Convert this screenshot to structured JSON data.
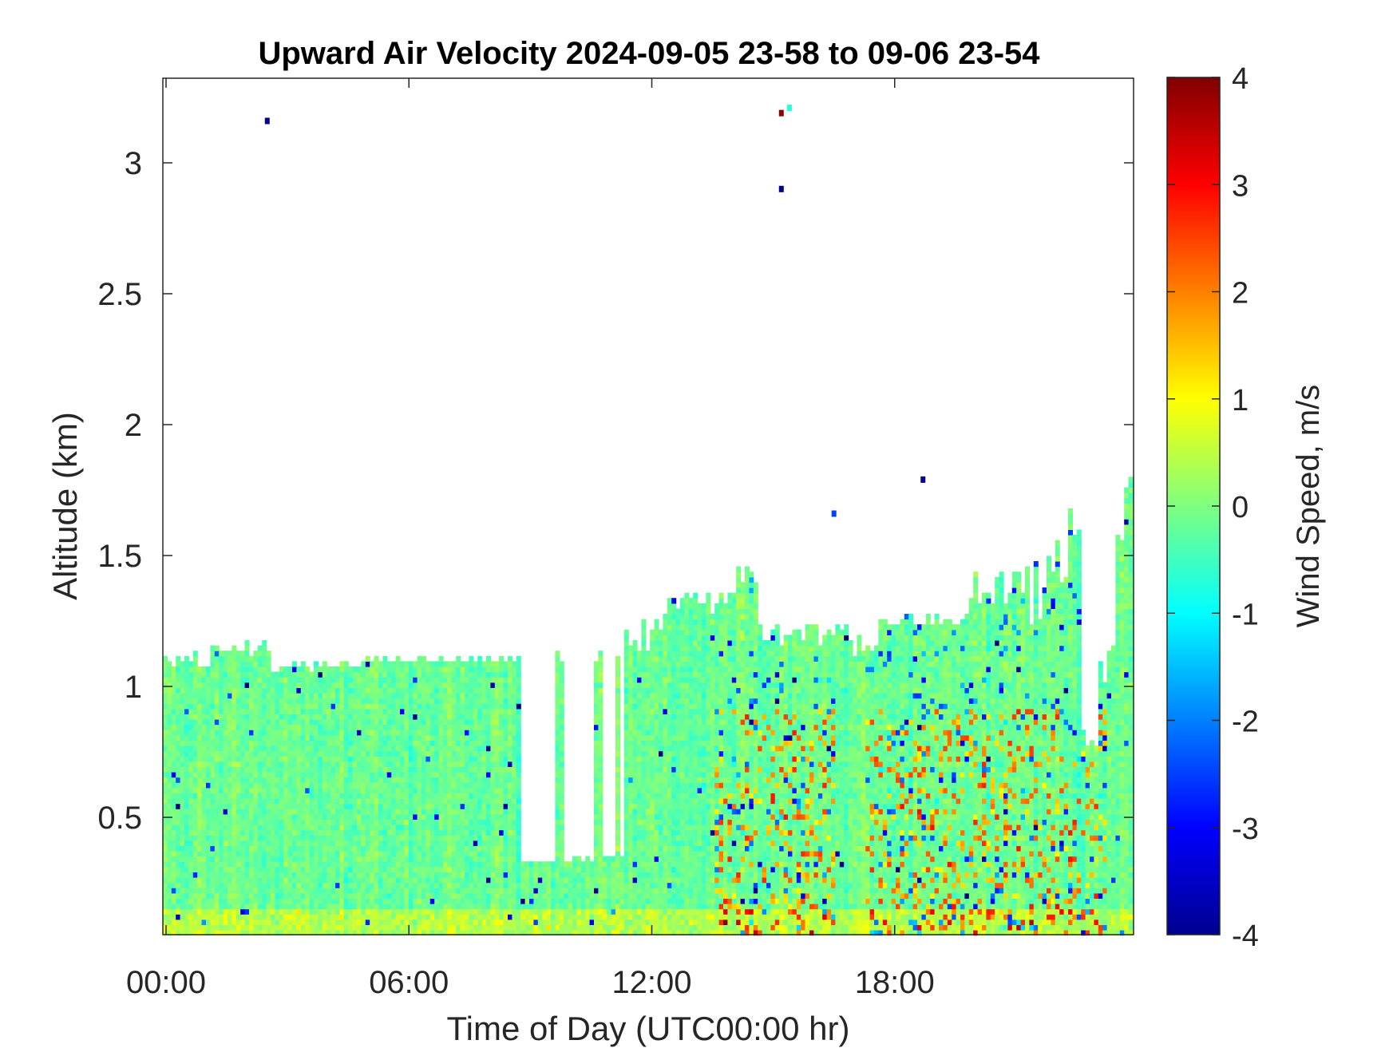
{
  "chart_data": {
    "type": "heatmap",
    "title": "Upward Air Velocity 2024-09-05 23-58 to 09-06 23-54",
    "xlabel": "Time of Day (UTC00:00 hr)",
    "ylabel": "Altitude (km)",
    "colorbar_label": "Wind Speed, m/s",
    "xlim_hours": [
      0,
      24
    ],
    "ylim_km": [
      0.05,
      3.3
    ],
    "clim": [
      -4,
      4
    ],
    "colormap": "jet",
    "x_ticks": [
      {
        "hour": 0,
        "label": "00:00"
      },
      {
        "hour": 6,
        "label": "06:00"
      },
      {
        "hour": 12,
        "label": "12:00"
      },
      {
        "hour": 18,
        "label": "18:00"
      }
    ],
    "y_ticks": [
      {
        "km": 0.5,
        "label": "0.5"
      },
      {
        "km": 1,
        "label": "1"
      },
      {
        "km": 1.5,
        "label": "1.5"
      },
      {
        "km": 2,
        "label": "2"
      },
      {
        "km": 2.5,
        "label": "2.5"
      },
      {
        "km": 3,
        "label": "3"
      }
    ],
    "colorbar_ticks": [
      {
        "value": 4,
        "label": "4"
      },
      {
        "value": 3,
        "label": "3"
      },
      {
        "value": 2,
        "label": "2"
      },
      {
        "value": 1,
        "label": "1"
      },
      {
        "value": 0,
        "label": "0"
      },
      {
        "value": -1,
        "label": "-1"
      },
      {
        "value": -2,
        "label": "-2"
      },
      {
        "value": -3,
        "label": "-3"
      },
      {
        "value": -4,
        "label": "-4"
      }
    ],
    "grid": false,
    "echo_top_km": [
      {
        "hour": 0.0,
        "km": 1.07
      },
      {
        "hour": 0.5,
        "km": 1.03
      },
      {
        "hour": 1.0,
        "km": 1.12
      },
      {
        "hour": 2.0,
        "km": 1.13
      },
      {
        "hour": 3.0,
        "km": 1.1
      },
      {
        "hour": 4.0,
        "km": 1.07
      },
      {
        "hour": 5.0,
        "km": 1.1
      },
      {
        "hour": 6.0,
        "km": 1.1
      },
      {
        "hour": 7.0,
        "km": 1.1
      },
      {
        "hour": 8.0,
        "km": 1.1
      },
      {
        "hour": 8.5,
        "km": 1.1
      },
      {
        "hour": 9.0,
        "km": 0.32
      },
      {
        "hour": 10.0,
        "km": 0.34
      },
      {
        "hour": 11.0,
        "km": 0.33
      },
      {
        "hour": 12.0,
        "km": 0.3
      },
      {
        "hour": 9.6,
        "km": 1.08
      },
      {
        "hour": 10.5,
        "km": 1.1
      },
      {
        "hour": 11.5,
        "km": 1.18
      },
      {
        "hour": 12.5,
        "km": 1.25
      },
      {
        "hour": 13.5,
        "km": 1.4
      },
      {
        "hour": 14.0,
        "km": 1.38
      },
      {
        "hour": 14.3,
        "km": 1.55
      },
      {
        "hour": 15.0,
        "km": 1.15
      },
      {
        "hour": 16.0,
        "km": 1.22
      },
      {
        "hour": 17.0,
        "km": 1.15
      },
      {
        "hour": 18.0,
        "km": 1.25
      },
      {
        "hour": 19.0,
        "km": 1.3
      },
      {
        "hour": 20.0,
        "km": 1.45
      },
      {
        "hour": 21.0,
        "km": 1.6
      },
      {
        "hour": 22.0,
        "km": 1.88
      },
      {
        "hour": 22.5,
        "km": 1.65
      },
      {
        "hour": 23.0,
        "km": 0.75
      },
      {
        "hour": 23.5,
        "km": 1.4
      },
      {
        "hour": 24.0,
        "km": 1.82
      }
    ],
    "isolated_pixels": [
      {
        "hour": 2.5,
        "km": 3.16,
        "ms": -3.9
      },
      {
        "hour": 15.2,
        "km": 3.19,
        "ms": 3.9
      },
      {
        "hour": 15.4,
        "km": 3.21,
        "ms": -0.7
      },
      {
        "hour": 15.2,
        "km": 2.9,
        "ms": -3.9
      },
      {
        "hour": 18.7,
        "km": 1.79,
        "ms": -3.9
      },
      {
        "hour": 16.5,
        "km": 1.66,
        "ms": -2.5
      }
    ]
  }
}
